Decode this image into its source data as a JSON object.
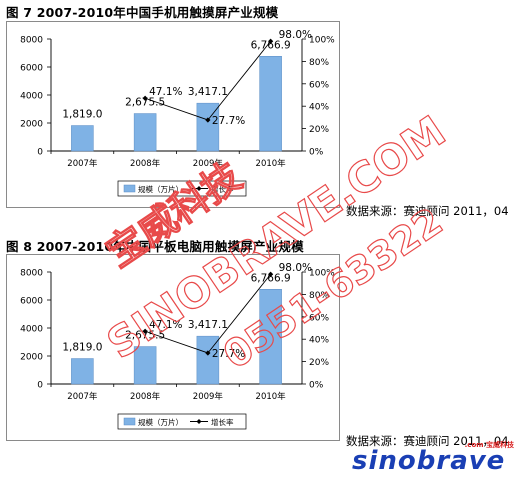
{
  "figures": [
    {
      "title": "图 7   2007-2010年中国手机用触摸屏产业规模"
    },
    {
      "title": "图 8   2007-2010年中国平板电脑用触摸屏产业规模"
    }
  ],
  "source_text": "数据来源：赛迪顾问 2011，04",
  "watermark": {
    "line1": "宝威科技",
    "line2": "SINOBRAVE.COM",
    "line3": "0551-63322"
  },
  "logo": {
    "word": "sinobrave",
    "sub": ".com 宝威科技"
  },
  "chart_data": [
    {
      "type": "bar",
      "categories": [
        "2007年",
        "2008年",
        "2009年",
        "2010年"
      ],
      "series": [
        {
          "name": "规模（万片）",
          "values": [
            1819.0,
            2675.5,
            3417.1,
            6766.9
          ],
          "labels": [
            "1,819.0",
            "2,675.5",
            "3,417.1",
            "6,766.9"
          ],
          "color": "#7fb2e5",
          "kind": "bar"
        },
        {
          "name": "增长率",
          "values": [
            null,
            47.1,
            27.7,
            98.0
          ],
          "labels": [
            "",
            "47.1%",
            "27.7%",
            "98.0%"
          ],
          "color": "#000000",
          "kind": "line"
        }
      ],
      "y_left_ticks": [
        "0",
        "2000",
        "4000",
        "6000",
        "8000"
      ],
      "y_left_range": [
        0,
        8000
      ],
      "y_right_ticks": [
        "0%",
        "20%",
        "40%",
        "60%",
        "80%",
        "100%"
      ],
      "y_right_range": [
        0,
        100
      ],
      "legend": "bottom"
    },
    {
      "type": "bar",
      "categories": [
        "2007年",
        "2008年",
        "2009年",
        "2010年"
      ],
      "series": [
        {
          "name": "规模（万片）",
          "values": [
            1819.0,
            2675.5,
            3417.1,
            6766.9
          ],
          "labels": [
            "1,819.0",
            "2,675.5",
            "3,417.1",
            "6,766.9"
          ],
          "color": "#7fb2e5",
          "kind": "bar"
        },
        {
          "name": "增长率",
          "values": [
            null,
            47.1,
            27.7,
            98.0
          ],
          "labels": [
            "",
            "47.1%",
            "27.7%",
            "98.0%"
          ],
          "color": "#000000",
          "kind": "line"
        }
      ],
      "y_left_ticks": [
        "0",
        "2000",
        "4000",
        "6000",
        "8000"
      ],
      "y_left_range": [
        0,
        8000
      ],
      "y_right_ticks": [
        "0%",
        "20%",
        "40%",
        "60%",
        "80%",
        "100%"
      ],
      "y_right_range": [
        0,
        100
      ],
      "legend": "bottom"
    }
  ]
}
